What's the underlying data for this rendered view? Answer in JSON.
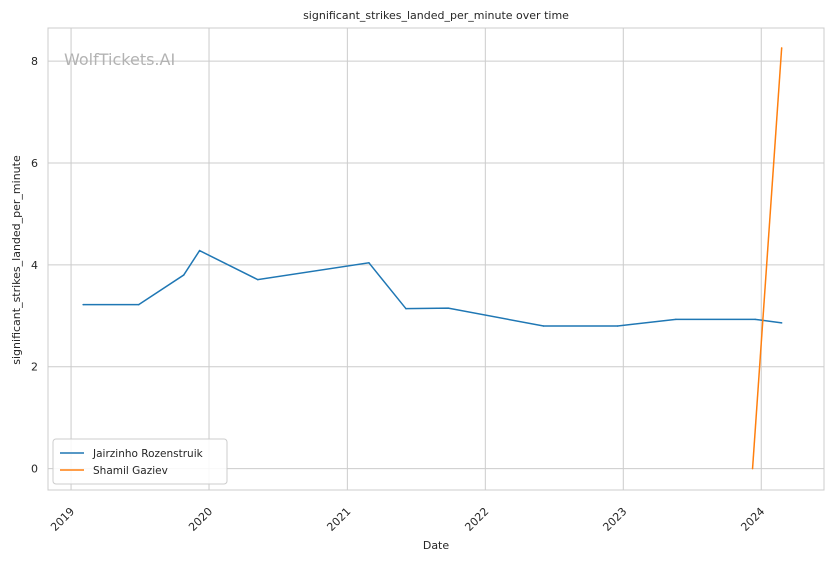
{
  "chart_data": {
    "type": "line",
    "title": "significant_strikes_landed_per_minute over time",
    "xlabel": "Date",
    "ylabel": "significant_strikes_landed_per_minute",
    "watermark": "WolfTickets.AI",
    "xlim": [
      "2018-11-01",
      "2024-06-15"
    ],
    "ylim": [
      -0.42,
      8.65
    ],
    "x_ticks": [
      "2019",
      "2020",
      "2021",
      "2022",
      "2023",
      "2024"
    ],
    "y_ticks": [
      "0",
      "2",
      "4",
      "6",
      "8"
    ],
    "grid": true,
    "legend_position": "lower-left",
    "series": [
      {
        "name": "Jairzinho Rozenstruik",
        "color": "#1f77b4",
        "points": [
          {
            "x": "2019-02-02",
            "y": 3.22
          },
          {
            "x": "2019-06-29",
            "y": 3.22
          },
          {
            "x": "2019-10-26",
            "y": 3.8
          },
          {
            "x": "2019-12-07",
            "y": 4.28
          },
          {
            "x": "2020-05-09",
            "y": 3.71
          },
          {
            "x": "2021-02-27",
            "y": 4.04
          },
          {
            "x": "2021-06-05",
            "y": 3.14
          },
          {
            "x": "2021-09-25",
            "y": 3.15
          },
          {
            "x": "2022-06-04",
            "y": 2.8
          },
          {
            "x": "2022-12-17",
            "y": 2.8
          },
          {
            "x": "2023-05-20",
            "y": 2.93
          },
          {
            "x": "2023-12-16",
            "y": 2.93
          },
          {
            "x": "2024-02-24",
            "y": 2.86
          }
        ]
      },
      {
        "name": "Shamil Gaziev",
        "color": "#ff7f0e",
        "points": [
          {
            "x": "2023-12-09",
            "y": 0.0
          },
          {
            "x": "2024-02-24",
            "y": 8.26
          }
        ]
      }
    ]
  }
}
